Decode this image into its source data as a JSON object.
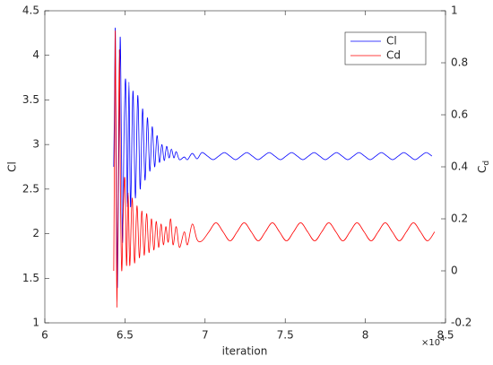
{
  "chart_data": {
    "type": "line",
    "xlabel": "iteration",
    "ylabel": "Cl",
    "y2label": {
      "base": "C",
      "sub": "d"
    },
    "x_multiplier": {
      "base": "×10",
      "exponent": "4"
    },
    "xlim": [
      60000,
      85000
    ],
    "xticks": [
      {
        "value": 60000,
        "label": "6"
      },
      {
        "value": 65000,
        "label": "6.5"
      },
      {
        "value": 70000,
        "label": "7"
      },
      {
        "value": 75000,
        "label": "7.5"
      },
      {
        "value": 80000,
        "label": "8"
      },
      {
        "value": 85000,
        "label": "8.5"
      }
    ],
    "ylim": [
      1,
      4.5
    ],
    "yticks": [
      1,
      1.5,
      2,
      2.5,
      3,
      3.5,
      4,
      4.5
    ],
    "y2lim": [
      -0.2,
      1
    ],
    "y2ticks": [
      -0.2,
      0,
      0.2,
      0.4,
      0.6,
      0.8,
      1
    ],
    "legend": "northeast",
    "series": [
      {
        "name": "Cl",
        "color": "#0000ff",
        "axis": "y",
        "x": [
          64300,
          64350,
          64400,
          64450,
          64520,
          64600,
          64700,
          64780,
          64850,
          64950,
          65050,
          65150,
          65250,
          65350,
          65500,
          65650,
          65800,
          65950,
          66100,
          66250,
          66400,
          66550,
          66700,
          66850,
          67000,
          67150,
          67300,
          67450,
          67600,
          67750,
          67900,
          68050,
          68200,
          68400,
          68700,
          68900,
          69200,
          69500,
          69800,
          70150,
          70500,
          70850,
          71200,
          71550,
          71900,
          72250,
          72600,
          72950,
          73300,
          73650,
          74000,
          74350,
          74700,
          75050,
          75400,
          75750,
          76100,
          76450,
          76800,
          77150,
          77500,
          77850,
          78200,
          78550,
          78900,
          79250,
          79600,
          79950,
          80300,
          80650,
          81000,
          81350,
          81700,
          82050,
          82400,
          82750,
          83100,
          83450,
          83800,
          84150
        ],
        "values": [
          2.75,
          3.5,
          4.3,
          3.0,
          1.4,
          2.5,
          4.2,
          3.0,
          1.9,
          3.2,
          3.7,
          2.3,
          3.7,
          2.3,
          3.6,
          2.4,
          3.55,
          2.5,
          3.4,
          2.6,
          3.3,
          2.7,
          3.2,
          2.75,
          3.1,
          2.8,
          3.0,
          2.82,
          2.98,
          2.85,
          2.95,
          2.85,
          2.92,
          2.83,
          2.86,
          2.83,
          2.9,
          2.84,
          2.91,
          2.87,
          2.83,
          2.87,
          2.91,
          2.87,
          2.83,
          2.87,
          2.91,
          2.87,
          2.83,
          2.87,
          2.91,
          2.87,
          2.83,
          2.87,
          2.91,
          2.87,
          2.83,
          2.87,
          2.91,
          2.87,
          2.83,
          2.87,
          2.91,
          2.87,
          2.83,
          2.87,
          2.91,
          2.87,
          2.83,
          2.87,
          2.91,
          2.87,
          2.83,
          2.87,
          2.91,
          2.87,
          2.83,
          2.87,
          2.91,
          2.87
        ]
      },
      {
        "name": "Cd",
        "color": "#ff0000",
        "axis": "y2",
        "x": [
          64300,
          64350,
          64400,
          64450,
          64500,
          64580,
          64650,
          64720,
          64800,
          64900,
          65000,
          65100,
          65200,
          65300,
          65450,
          65600,
          65750,
          65900,
          66050,
          66200,
          66350,
          66500,
          66650,
          66800,
          66950,
          67100,
          67250,
          67400,
          67550,
          67700,
          67850,
          68000,
          68200,
          68400,
          68700,
          68900,
          69200,
          69500,
          69800,
          70240,
          70680,
          71120,
          71560,
          72000,
          72440,
          72880,
          73320,
          73760,
          74200,
          74640,
          75080,
          75520,
          75960,
          76400,
          76840,
          77280,
          77720,
          78160,
          78600,
          79040,
          79480,
          79920,
          80360,
          80800,
          81240,
          81680,
          82120,
          82560,
          83000,
          83440,
          83880,
          84320
        ],
        "values": [
          0.0,
          0.5,
          0.92,
          0.3,
          -0.14,
          0.3,
          0.85,
          0.3,
          0.0,
          0.25,
          0.35,
          0.02,
          0.3,
          0.02,
          0.28,
          0.03,
          0.25,
          0.05,
          0.23,
          0.06,
          0.22,
          0.07,
          0.2,
          0.08,
          0.19,
          0.09,
          0.18,
          0.1,
          0.17,
          0.11,
          0.2,
          0.1,
          0.17,
          0.09,
          0.15,
          0.1,
          0.18,
          0.12,
          0.115,
          0.15,
          0.185,
          0.15,
          0.115,
          0.15,
          0.185,
          0.15,
          0.115,
          0.15,
          0.185,
          0.15,
          0.115,
          0.15,
          0.185,
          0.15,
          0.115,
          0.15,
          0.185,
          0.15,
          0.115,
          0.15,
          0.185,
          0.15,
          0.115,
          0.15,
          0.185,
          0.15,
          0.115,
          0.15,
          0.185,
          0.15,
          0.115,
          0.15
        ]
      }
    ]
  }
}
